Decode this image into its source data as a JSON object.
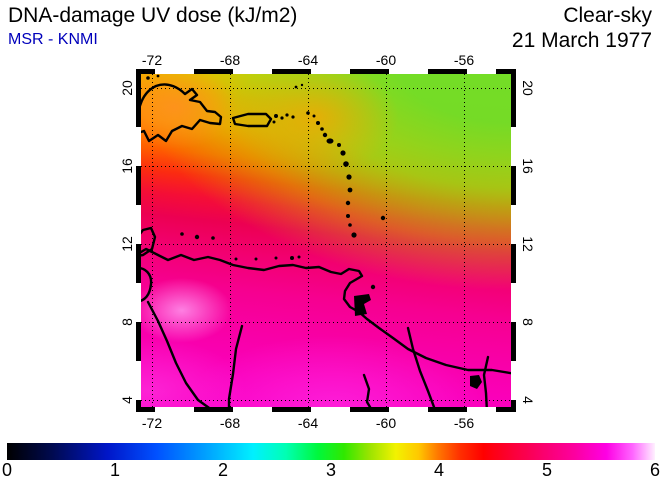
{
  "header": {
    "title": "DNA-damage UV dose (kJ/m2)",
    "source": "MSR - KNMI",
    "source_color": "#0000bb",
    "condition": "Clear-sky",
    "date": "21 March 1977"
  },
  "map": {
    "x_tick_labels": [
      "-72",
      "-68",
      "-64",
      "-60",
      "-56"
    ],
    "y_tick_labels": [
      "20",
      "16",
      "12",
      "8",
      "4"
    ]
  },
  "colorbar": {
    "tick_labels": [
      "0",
      "1",
      "2",
      "3",
      "4",
      "5",
      "6"
    ],
    "min": 0,
    "max": 6,
    "key_colors": {
      "0": "#000000",
      "1": "#0016c8",
      "2": "#00a8ff",
      "2.5": "#00ffd0",
      "3": "#20ee00",
      "3.5": "#f2f200",
      "4": "#ff6000",
      "4.5": "#fb0030",
      "5": "#fb0080",
      "5.5": "#fe00e0",
      "6": "#fff0ff"
    }
  },
  "chart_data": {
    "type": "heatmap",
    "title": "DNA-damage UV dose (kJ/m2)",
    "provider": "MSR - KNMI",
    "scenario": "Clear-sky",
    "date": "21 March 1977",
    "region": "Caribbean Sea and northern South America",
    "x_axis": {
      "ticks": [
        -72,
        -68,
        -64,
        -60,
        -56
      ],
      "range": [
        -73,
        -53
      ]
    },
    "y_axis": {
      "ticks": [
        20,
        16,
        12,
        8,
        4
      ],
      "range": [
        3.5,
        21
      ]
    },
    "colorbar": {
      "range": [
        0,
        6
      ],
      "ticks": [
        0,
        1,
        2,
        3,
        4,
        5,
        6
      ]
    },
    "grid": true,
    "legend_position": "bottom",
    "latitude_profile": [
      {
        "lat": 20,
        "approx_dose": 3.1
      },
      {
        "lat": 18,
        "approx_dose": 3.5
      },
      {
        "lat": 16,
        "approx_dose": 3.8
      },
      {
        "lat": 14,
        "approx_dose": 4.2
      },
      {
        "lat": 12,
        "approx_dose": 4.6
      },
      {
        "lat": 10,
        "approx_dose": 4.9
      },
      {
        "lat": 8,
        "approx_dose": 5.1
      },
      {
        "lat": 6,
        "approx_dose": 5.3
      },
      {
        "lat": 4,
        "approx_dose": 5.4
      }
    ],
    "features": [
      "low-dose green band (~3) along the northern edge, dipping lowest in the northeast",
      "orange patch (~3.9) over western Hispaniola",
      "bright pink spot (~5.2) near 8.5N 70.5W",
      "bright magenta maximum (~5.5) along the bottom center near 4-5N",
      "dose isolines tilt slightly downward toward the east"
    ]
  }
}
